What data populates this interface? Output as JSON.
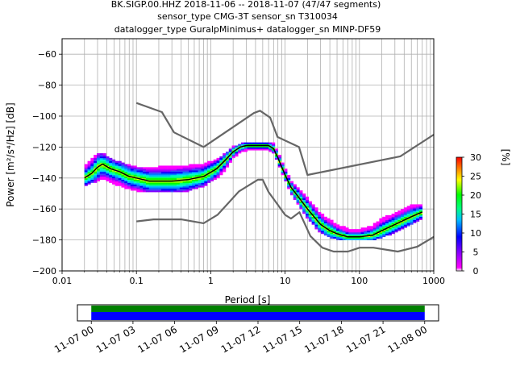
{
  "chart_data": {
    "type": "line",
    "title_lines": [
      "BK.SIGP.00.HHZ   2018-11-06 -- 2018-11-07  (47/47 segments)",
      "sensor_type CMG-3T sensor_sn T310034",
      "datalogger_type GuralpMinimus+ datalogger_sn MINP-DF59"
    ],
    "xlabel": "Period [s]",
    "ylabel": "Power [m²/s⁴/Hz] [dB]",
    "x_scale": "log",
    "xlim": [
      0.01,
      1000
    ],
    "ylim": [
      -200,
      -50
    ],
    "x_ticks": [
      {
        "value": 0.01,
        "label": "0.01"
      },
      {
        "value": 0.1,
        "label": "0.1"
      },
      {
        "value": 1,
        "label": "1"
      },
      {
        "value": 10,
        "label": "10"
      },
      {
        "value": 100,
        "label": "100"
      },
      {
        "value": 1000,
        "label": "1000"
      }
    ],
    "y_ticks": [
      -60,
      -80,
      -100,
      -120,
      -140,
      -160,
      -180,
      -200
    ],
    "y_tick_labels": [
      "−60",
      "−80",
      "−100",
      "−120",
      "−140",
      "−160",
      "−180",
      "−200"
    ],
    "grid": true,
    "series": [
      {
        "role": "high-noise-model",
        "color": "#666666",
        "x": [
          0.1,
          0.22,
          0.32,
          0.8,
          3.8,
          4.6,
          6.3,
          7.9,
          15.4,
          20,
          354.8,
          1000
        ],
        "y": [
          -91.5,
          -97.4,
          -110.5,
          -120,
          -98,
          -96.5,
          -101,
          -113.5,
          -120,
          -138,
          -126,
          -112
        ]
      },
      {
        "role": "low-noise-model",
        "color": "#666666",
        "x": [
          0.1,
          0.17,
          0.4,
          0.8,
          1.24,
          2.4,
          4.3,
          5,
          6,
          10,
          12,
          15.6,
          21.9,
          31.6,
          45,
          70,
          101,
          154,
          328,
          600,
          1000
        ],
        "y": [
          -168,
          -166.7,
          -166.7,
          -169.2,
          -163.7,
          -148.6,
          -141.1,
          -141.1,
          -149,
          -163.8,
          -166.2,
          -162.1,
          -177.5,
          -185,
          -187.5,
          -187.5,
          -185,
          -185,
          -187.5,
          -184.4,
          -178
        ]
      },
      {
        "role": "mode",
        "color": "#000000",
        "x": [
          0.02,
          0.025,
          0.03,
          0.035,
          0.045,
          0.06,
          0.08,
          0.1,
          0.15,
          0.2,
          0.3,
          0.5,
          0.8,
          1.2,
          1.6,
          2,
          2.5,
          3,
          4,
          5,
          6,
          7,
          8,
          10,
          12,
          15,
          20,
          30,
          40,
          50,
          70,
          100,
          150,
          200,
          300,
          500,
          700
        ],
        "y": [
          -140,
          -137,
          -133,
          -131,
          -134,
          -136,
          -139,
          -140,
          -142,
          -142,
          -142,
          -141,
          -139,
          -134,
          -128,
          -123,
          -120,
          -119,
          -119,
          -119,
          -119,
          -121,
          -127,
          -138,
          -146,
          -152,
          -160,
          -170,
          -174,
          -176,
          -178,
          -178,
          -177,
          -174,
          -170,
          -165,
          -162
        ]
      }
    ],
    "pdf_band": {
      "x": [
        0.02,
        0.025,
        0.03,
        0.035,
        0.045,
        0.06,
        0.08,
        0.1,
        0.15,
        0.2,
        0.3,
        0.5,
        0.8,
        1.2,
        1.6,
        2,
        2.5,
        3,
        4,
        5,
        6,
        7,
        8,
        10,
        12,
        15,
        20,
        30,
        40,
        50,
        70,
        100,
        150,
        200,
        300,
        500,
        700
      ],
      "y_high": [
        -133,
        -128,
        -124,
        -124,
        -128,
        -130,
        -132,
        -133,
        -133,
        -133,
        -132,
        -132,
        -131,
        -128,
        -124,
        -120,
        -118,
        -117,
        -117,
        -117,
        -117,
        -118,
        -123,
        -134,
        -142,
        -147,
        -153,
        -163,
        -167,
        -170,
        -173,
        -173,
        -171,
        -166,
        -163,
        -158,
        -157
      ],
      "y_low": [
        -145,
        -143,
        -142,
        -140,
        -143,
        -145,
        -147,
        -148,
        -149,
        -149,
        -149,
        -148,
        -145,
        -140,
        -134,
        -127,
        -123,
        -122,
        -122,
        -122,
        -122,
        -124,
        -130,
        -141,
        -150,
        -157,
        -166,
        -175,
        -178,
        -179,
        -180,
        -180,
        -180,
        -178,
        -175,
        -170,
        -166
      ]
    },
    "colorbar": {
      "label": "[%]",
      "ticks": [
        0,
        5,
        10,
        15,
        20,
        25,
        30
      ],
      "min": 0,
      "max": 30
    },
    "timeline": {
      "range": [
        "2018-11-06 23:00",
        "2018-11-08 01:00"
      ],
      "coverage": [
        "2018-11-07 00:00",
        "2018-11-08 00:00"
      ],
      "ticks": [
        {
          "hour": 0,
          "label": "11-07 00"
        },
        {
          "hour": 3,
          "label": "11-07 03"
        },
        {
          "hour": 6,
          "label": "11-07 06"
        },
        {
          "hour": 9,
          "label": "11-07 09"
        },
        {
          "hour": 12,
          "label": "11-07 12"
        },
        {
          "hour": 15,
          "label": "11-07 15"
        },
        {
          "hour": 18,
          "label": "11-07 18"
        },
        {
          "hour": 21,
          "label": "11-07 21"
        },
        {
          "hour": 24,
          "label": "11-08 00"
        }
      ],
      "colors": {
        "top": "#008000",
        "bottom": "#0000ff"
      }
    }
  }
}
